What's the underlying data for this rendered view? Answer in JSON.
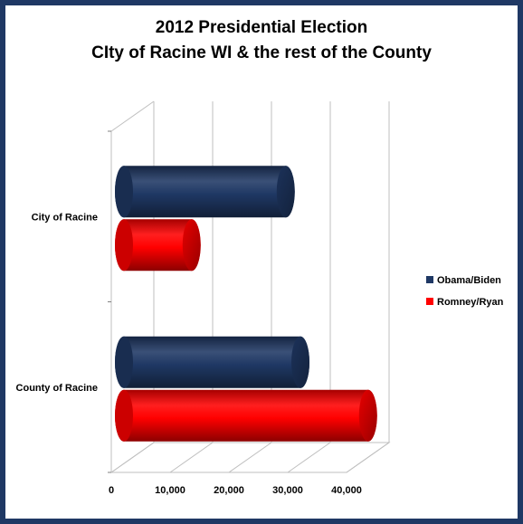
{
  "chart_data": {
    "type": "bar",
    "orientation": "horizontal",
    "title_lines": [
      "2012 Presidential Election",
      "CIty of Racine WI & the rest of the County"
    ],
    "categories": [
      "City of Racine",
      "County of Racine"
    ],
    "series": [
      {
        "name": "Obama/Biden",
        "color": "#1f3864",
        "values": [
          27500,
          30000
        ]
      },
      {
        "name": "Romney/Ryan",
        "color": "#ff0000",
        "values": [
          11500,
          41500
        ]
      }
    ],
    "xlim": [
      0,
      40000
    ],
    "x_ticks": [
      0,
      10000,
      20000,
      30000,
      40000
    ],
    "x_tick_labels": [
      "0",
      "10,000",
      "20,000",
      "30,000",
      "40,000"
    ],
    "grid": true,
    "legend_position": "right",
    "style": "3d-cylinder"
  }
}
